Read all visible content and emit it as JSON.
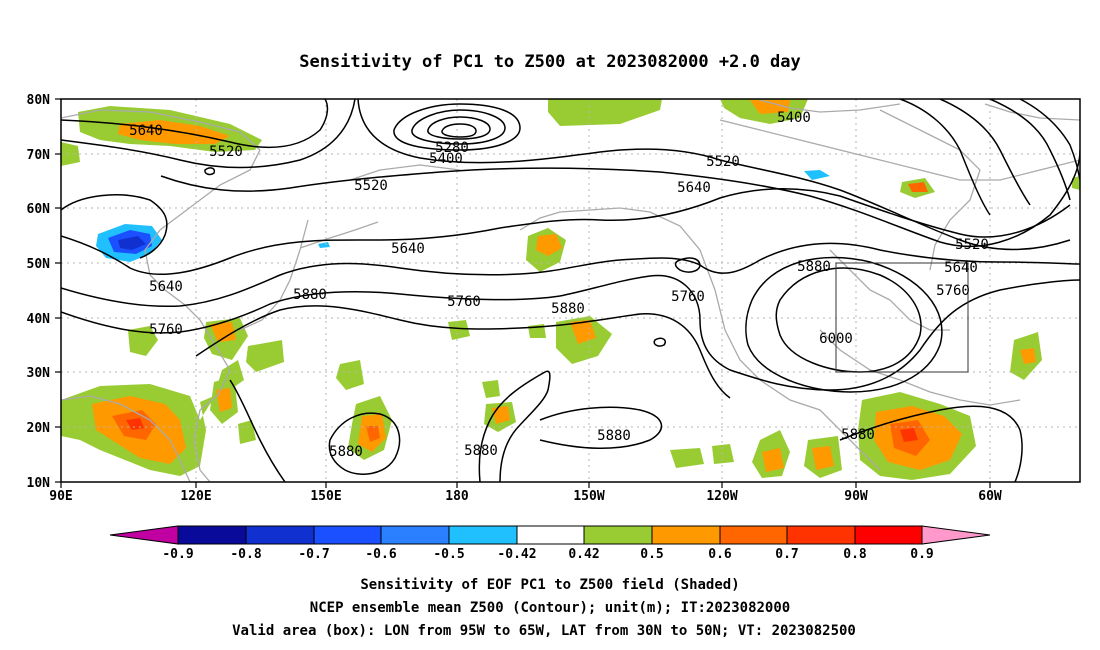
{
  "title": "Sensitivity of PC1 to Z500 at 2023082000 +2.0 day",
  "lat_labels": [
    "80N",
    "70N",
    "60N",
    "50N",
    "40N",
    "30N",
    "20N",
    "10N"
  ],
  "lon_labels": [
    "90E",
    "120E",
    "150E",
    "180",
    "150W",
    "120W",
    "90W",
    "60W"
  ],
  "contour_labels": [
    {
      "text": "5640"
    },
    {
      "text": "5520"
    },
    {
      "text": "5280"
    },
    {
      "text": "5400"
    },
    {
      "text": "5400"
    },
    {
      "text": "5520"
    },
    {
      "text": "5520"
    },
    {
      "text": "5640"
    },
    {
      "text": "5640"
    },
    {
      "text": "5520"
    },
    {
      "text": "5640"
    },
    {
      "text": "5760"
    },
    {
      "text": "5880"
    },
    {
      "text": "5640"
    },
    {
      "text": "5760"
    },
    {
      "text": "5880"
    },
    {
      "text": "5760"
    },
    {
      "text": "6000"
    },
    {
      "text": "5880"
    },
    {
      "text": "5880"
    },
    {
      "text": "5880"
    },
    {
      "text": "5880"
    },
    {
      "text": "5760"
    }
  ],
  "colorbar": {
    "labels": [
      "-0.9",
      "-0.8",
      "-0.7",
      "-0.6",
      "-0.5",
      "-0.42",
      "0.42",
      "0.5",
      "0.6",
      "0.7",
      "0.8",
      "0.9"
    ],
    "colors": [
      "#c000a0",
      "#0a0a9a",
      "#1030d0",
      "#1a50ff",
      "#2a80ff",
      "#20c0ff",
      "#ffffff",
      "#99cc33",
      "#ff9900",
      "#ff6600",
      "#ff3300",
      "#ff0000",
      "#ff99cc"
    ]
  },
  "captions": [
    "Sensitivity of EOF PC1 to Z500 field (Shaded)",
    "NCEP ensemble mean Z500 (Contour); unit(m); IT:2023082000",
    "Valid area (box): LON from 95W to 65W, LAT from 30N to 50N; VT: 2023082500"
  ],
  "valid_box": {
    "lon_min": "95W",
    "lon_max": "65W",
    "lat_min": "30N",
    "lat_max": "50N"
  }
}
